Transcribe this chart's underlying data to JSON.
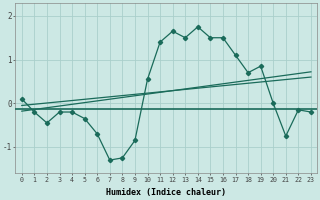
{
  "xlabel": "Humidex (Indice chaleur)",
  "ylabel": "",
  "bg_color": "#cce8e4",
  "grid_color": "#aacfcb",
  "line_color": "#1a6b5a",
  "x_values": [
    0,
    1,
    2,
    3,
    4,
    5,
    6,
    7,
    8,
    9,
    10,
    11,
    12,
    13,
    14,
    15,
    16,
    17,
    18,
    19,
    20,
    21,
    22,
    23
  ],
  "y_main": [
    0.1,
    -0.2,
    -0.45,
    -0.2,
    -0.2,
    -0.35,
    -0.7,
    -1.3,
    -1.25,
    -0.85,
    0.55,
    1.4,
    1.65,
    1.5,
    1.75,
    1.5,
    1.5,
    1.1,
    0.7,
    0.85,
    0.0,
    -0.75,
    -0.15,
    -0.2
  ],
  "ylim": [
    -1.6,
    2.3
  ],
  "yticks": [
    -1,
    0,
    1,
    2
  ],
  "xlim": [
    -0.5,
    23.5
  ],
  "flat_line_y": -0.12,
  "trend_line1": [
    -0.18,
    0.72
  ],
  "trend_line2": [
    -0.05,
    0.6
  ]
}
